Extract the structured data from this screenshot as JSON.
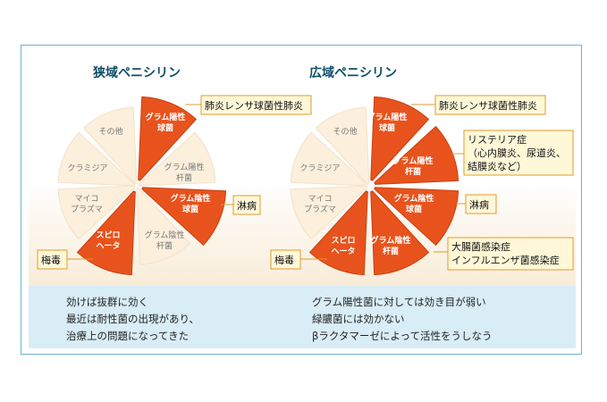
{
  "left_chart": {
    "title": "狭域ペニシリン",
    "segments": {
      "gram_pos_cocci": [
        "グラム陽性",
        "球菌"
      ],
      "gram_pos_rod": [
        "グラム陽性",
        "杆菌"
      ],
      "gram_neg_cocci": [
        "グラム陰性",
        "球菌"
      ],
      "gram_neg_rod": [
        "グラム陰性",
        "杆菌"
      ],
      "spirochete": [
        "スピロ",
        "ヘータ"
      ],
      "mycoplasma": [
        "マイコ",
        "プラズマ"
      ],
      "chlamydia": [
        "クラミジア"
      ],
      "other": [
        "その他"
      ]
    },
    "callouts": {
      "pneumonia": "肺炎レンサ球菌性肺炎",
      "gonorrhea": "淋病",
      "syphilis": "梅毒"
    }
  },
  "right_chart": {
    "title": "広域ペニシリン",
    "segments": {
      "gram_pos_cocci": [
        "グラム陽性",
        "球菌"
      ],
      "gram_pos_rod": [
        "グラム陽性",
        "杆菌"
      ],
      "gram_neg_cocci": [
        "グラム陰性",
        "球菌"
      ],
      "gram_neg_rod": [
        "グラム陰性",
        "杆菌"
      ],
      "spirochete": [
        "スピロ",
        "ヘータ"
      ],
      "mycoplasma": [
        "マイコ",
        "プラズマ"
      ],
      "chlamydia": [
        "クラミジア"
      ],
      "other": [
        "その他"
      ]
    },
    "callouts": {
      "pneumonia": "肺炎レンサ球菌性肺炎",
      "listeria": [
        "リステリア症",
        "（心内膜炎、尿道炎、",
        "結膜炎など）"
      ],
      "gonorrhea": "淋病",
      "intestinal": [
        "大腸菌感染症",
        "インフルエンザ菌感染症"
      ],
      "syphilis": "梅毒"
    }
  },
  "notes": {
    "left": [
      "効けば抜群に効く",
      "最近は耐性菌の出現があり、",
      "治療上の問題になってきた"
    ],
    "right": [
      "グラム陽性菌に対しては効き目が弱い",
      "緑膿菌には効かない",
      "βラクタマーゼによって活性をうしなう"
    ]
  },
  "colors": {
    "highlight": "#e8531d",
    "highlight_stroke": "#c9400f",
    "pale": "#fcefdc",
    "pale_stroke": "#f2e2c8",
    "frame": "#6fb2cf",
    "note_bg": "#d9edf6",
    "title": "#0e4d68"
  }
}
